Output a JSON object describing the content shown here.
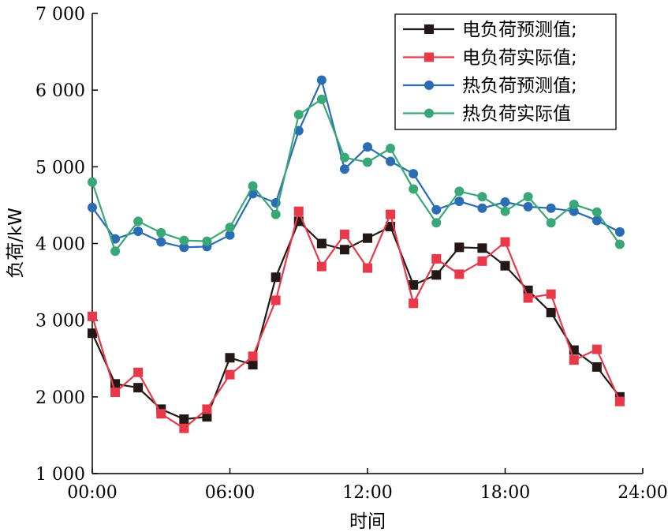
{
  "chart_data": {
    "type": "line",
    "xlabel": "时间",
    "ylabel": "负荷/kW",
    "xlim": [
      0,
      24
    ],
    "ylim": [
      1000,
      7000
    ],
    "x_ticks": [
      {
        "value": 0,
        "label": "00:00"
      },
      {
        "value": 6,
        "label": "06:00"
      },
      {
        "value": 12,
        "label": "12:00"
      },
      {
        "value": 18,
        "label": "18:00"
      },
      {
        "value": 24,
        "label": "24:00"
      }
    ],
    "y_ticks": [
      {
        "value": 1000,
        "label": "1 000"
      },
      {
        "value": 2000,
        "label": "2 000"
      },
      {
        "value": 3000,
        "label": "3 000"
      },
      {
        "value": 4000,
        "label": "4 000"
      },
      {
        "value": 5000,
        "label": "5 000"
      },
      {
        "value": 6000,
        "label": "6 000"
      },
      {
        "value": 7000,
        "label": "7 000"
      }
    ],
    "grid": false,
    "legend_position": "top-right",
    "x": [
      0,
      1,
      2,
      3,
      4,
      5,
      6,
      7,
      8,
      9,
      10,
      11,
      12,
      13,
      14,
      15,
      16,
      17,
      18,
      19,
      20,
      21,
      22,
      23
    ],
    "series": [
      {
        "name": "电负荷预测值;",
        "color": "#231815",
        "marker": "square",
        "values": [
          2830,
          2170,
          2120,
          1840,
          1710,
          1740,
          2510,
          2420,
          3560,
          4290,
          4000,
          3920,
          4070,
          4220,
          3460,
          3590,
          3950,
          3940,
          3710,
          3390,
          3100,
          2610,
          2390,
          2000
        ]
      },
      {
        "name": "电负荷实际值;",
        "color": "#e8394a",
        "marker": "square",
        "values": [
          3050,
          2060,
          2320,
          1780,
          1590,
          1840,
          2290,
          2530,
          3260,
          4420,
          3700,
          4120,
          3680,
          4380,
          3220,
          3800,
          3600,
          3770,
          4020,
          3290,
          3340,
          2480,
          2620,
          1940
        ]
      },
      {
        "name": "热负荷预测值;",
        "color": "#2a6db5",
        "marker": "circle",
        "values": [
          4470,
          4060,
          4160,
          4020,
          3950,
          3960,
          4110,
          4650,
          4530,
          5470,
          6130,
          4970,
          5260,
          5070,
          4910,
          4440,
          4550,
          4460,
          4540,
          4480,
          4460,
          4420,
          4300,
          4150
        ]
      },
      {
        "name": "热负荷实际值",
        "color": "#3aa776",
        "marker": "circle",
        "values": [
          4800,
          3900,
          4290,
          4140,
          4040,
          4030,
          4210,
          4750,
          4380,
          5680,
          5880,
          5120,
          5060,
          5240,
          4710,
          4270,
          4680,
          4610,
          4420,
          4610,
          4270,
          4510,
          4410,
          3990
        ]
      }
    ]
  }
}
